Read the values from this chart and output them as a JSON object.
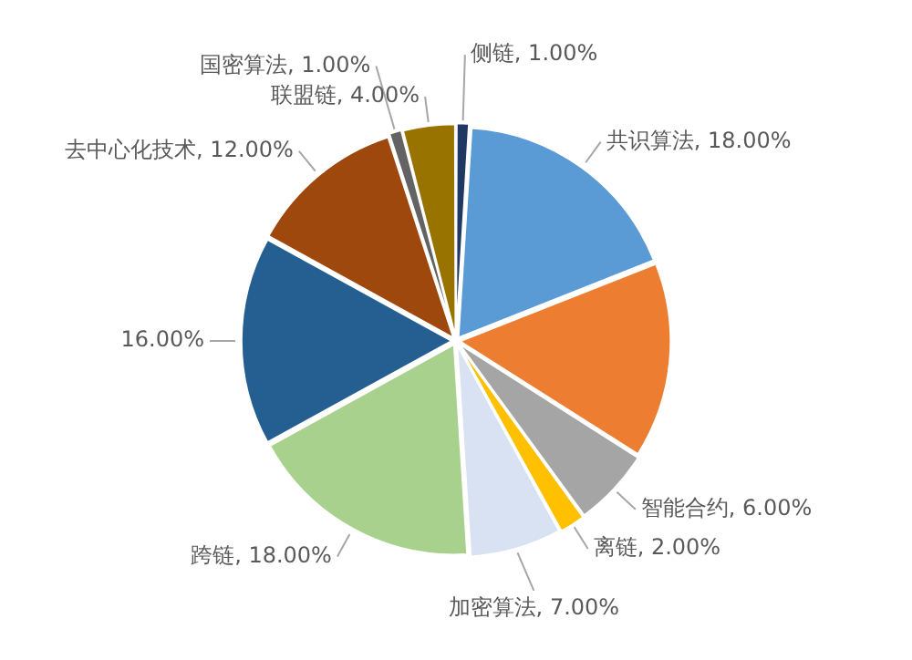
{
  "chart_data": {
    "type": "pie",
    "categories": [
      "侧链",
      "共识算法",
      null,
      "智能合约",
      "离链",
      "加密算法",
      "跨链",
      null,
      "去中心化技术",
      "国密算法",
      "联盟链"
    ],
    "values": [
      1,
      18,
      15,
      6,
      2,
      7,
      18,
      16,
      12,
      1,
      4
    ],
    "colors": [
      "#203864",
      "#5b9bd5",
      "#ed7d31",
      "#a5a5a5",
      "#ffc000",
      "#d9e2f3",
      "#a9d18e",
      "#255e91",
      "#9e480e",
      "#636363",
      "#997300"
    ],
    "value_labels": [
      "1.00%",
      "18.00%",
      null,
      "6.00%",
      "2.00%",
      "7.00%",
      "18.00%",
      "16.00%",
      "12.00%",
      "1.00%",
      "4.00%"
    ]
  }
}
